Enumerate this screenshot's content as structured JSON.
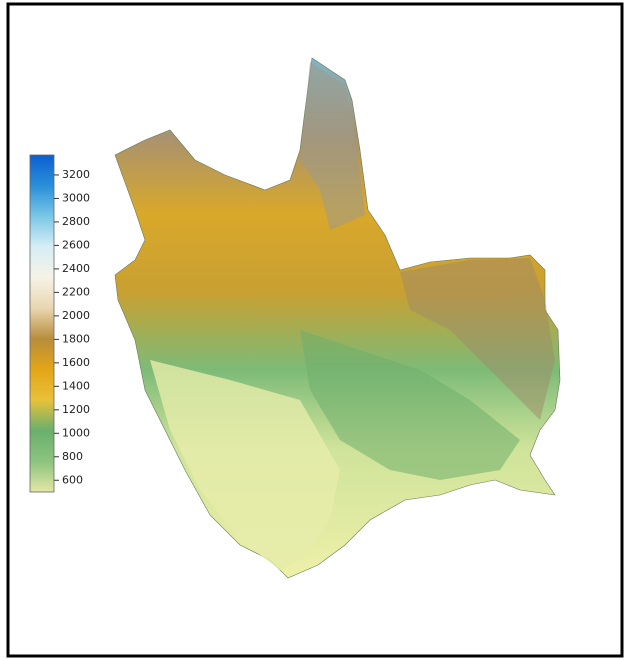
{
  "colorbar": {
    "range": [
      500,
      3370
    ],
    "ticks": [
      600,
      800,
      1000,
      1200,
      1400,
      1600,
      1800,
      2000,
      2200,
      2400,
      2600,
      2800,
      3000,
      3200
    ],
    "colors": [
      "#e4e6a6",
      "#8cc47f",
      "#6aaf6e",
      "#e8c13a",
      "#e3a517",
      "#b88d3c",
      "#e9d6b0",
      "#f6f2e6",
      "#d6eef5",
      "#79c7e6",
      "#2a8fd8",
      "#0b5fd0"
    ]
  }
}
